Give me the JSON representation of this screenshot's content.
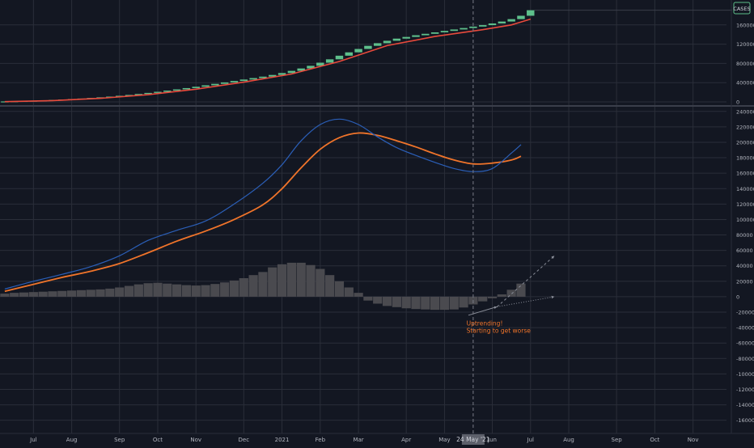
{
  "symbol": "CASES",
  "colors": {
    "background": "#131722",
    "grid": "#2a2e39",
    "axis_text": "#b2b5be",
    "candle_up": "#5ebf8b",
    "price_ma": "#e84a3c",
    "macd_line": "#2b5fb8",
    "signal_line": "#f0742a",
    "histogram": "#4a4a4f",
    "annotation": "#f0742a",
    "crosshair": "#787b86"
  },
  "chart_data": [
    {
      "type": "candlestick",
      "name": "price-pane",
      "title": "",
      "y_ticks": [
        0,
        400000,
        800000,
        1200000,
        1600000
      ],
      "ylim": [
        -50000,
        2050000
      ],
      "last_value_label": "CASES",
      "candles": [
        [
          0,
          5000,
          10000
        ],
        [
          1,
          10000,
          15000
        ],
        [
          2,
          15000,
          20000
        ],
        [
          3,
          20000,
          26000
        ],
        [
          4,
          26000,
          33000
        ],
        [
          5,
          33000,
          41000
        ],
        [
          6,
          41000,
          50000
        ],
        [
          7,
          50000,
          60000
        ],
        [
          8,
          60000,
          70000
        ],
        [
          9,
          70000,
          82000
        ],
        [
          10,
          82000,
          95000
        ],
        [
          11,
          95000,
          110000
        ],
        [
          12,
          110000,
          127000
        ],
        [
          13,
          127000,
          145000
        ],
        [
          14,
          145000,
          165000
        ],
        [
          15,
          165000,
          187000
        ],
        [
          16,
          187000,
          210000
        ],
        [
          17,
          210000,
          235000
        ],
        [
          18,
          235000,
          260000
        ],
        [
          19,
          260000,
          287000
        ],
        [
          20,
          287000,
          315000
        ],
        [
          21,
          315000,
          345000
        ],
        [
          22,
          345000,
          375000
        ],
        [
          23,
          375000,
          405000
        ],
        [
          24,
          405000,
          435000
        ],
        [
          25,
          435000,
          465000
        ],
        [
          26,
          465000,
          495000
        ],
        [
          27,
          495000,
          525000
        ],
        [
          28,
          525000,
          560000
        ],
        [
          29,
          560000,
          600000
        ],
        [
          30,
          600000,
          645000
        ],
        [
          31,
          645000,
          695000
        ],
        [
          32,
          695000,
          750000
        ],
        [
          33,
          750000,
          815000
        ],
        [
          34,
          815000,
          885000
        ],
        [
          35,
          885000,
          960000
        ],
        [
          36,
          960000,
          1030000
        ],
        [
          37,
          1030000,
          1100000
        ],
        [
          38,
          1100000,
          1165000
        ],
        [
          39,
          1165000,
          1220000
        ],
        [
          40,
          1220000,
          1270000
        ],
        [
          41,
          1270000,
          1315000
        ],
        [
          42,
          1315000,
          1350000
        ],
        [
          43,
          1350000,
          1385000
        ],
        [
          44,
          1385000,
          1415000
        ],
        [
          45,
          1415000,
          1445000
        ],
        [
          46,
          1445000,
          1475000
        ],
        [
          47,
          1475000,
          1505000
        ],
        [
          48,
          1505000,
          1535000
        ],
        [
          49,
          1535000,
          1565000
        ],
        [
          50,
          1565000,
          1595000
        ],
        [
          51,
          1595000,
          1630000
        ],
        [
          52,
          1630000,
          1670000
        ],
        [
          53,
          1670000,
          1720000
        ],
        [
          54,
          1720000,
          1790000
        ],
        [
          55,
          1790000,
          1905000
        ]
      ],
      "moving_average": [
        [
          0,
          5000
        ],
        [
          5,
          28000
        ],
        [
          10,
          75000
        ],
        [
          15,
          150000
        ],
        [
          20,
          265000
        ],
        [
          25,
          410000
        ],
        [
          30,
          580000
        ],
        [
          35,
          840000
        ],
        [
          40,
          1170000
        ],
        [
          45,
          1360000
        ],
        [
          50,
          1500000
        ],
        [
          53,
          1600000
        ],
        [
          55,
          1720000
        ]
      ]
    },
    {
      "type": "line",
      "name": "oscillator-pane",
      "title": "",
      "y_ticks": [
        240000,
        220000,
        200000,
        180000,
        160000,
        140000,
        120000,
        100000,
        80000,
        60000,
        40000,
        20000,
        0,
        -20000,
        -40000,
        -60000,
        -80000,
        -100000,
        -120000,
        -140000,
        -160000
      ],
      "ylim": [
        -175000,
        245000
      ],
      "series": [
        {
          "key": "fast",
          "values": [
            [
              0,
              10000
            ],
            [
              3,
              20000
            ],
            [
              6,
              29000
            ],
            [
              9,
              39000
            ],
            [
              12,
              53000
            ],
            [
              15,
              73000
            ],
            [
              18,
              86000
            ],
            [
              21,
              98000
            ],
            [
              24,
              120000
            ],
            [
              27,
              147000
            ],
            [
              29,
              171000
            ],
            [
              31,
              202000
            ],
            [
              33,
              223000
            ],
            [
              35,
              230000
            ],
            [
              37,
              223000
            ],
            [
              39,
              207000
            ],
            [
              41,
              193000
            ],
            [
              43,
              183000
            ],
            [
              45,
              174000
            ],
            [
              47,
              166000
            ],
            [
              49,
              162000
            ],
            [
              51,
              166000
            ],
            [
              53,
              186000
            ],
            [
              54,
              197000
            ]
          ]
        },
        {
          "key": "slow",
          "values": [
            [
              0,
              7000
            ],
            [
              3,
              16000
            ],
            [
              6,
              25000
            ],
            [
              9,
              33000
            ],
            [
              12,
              43000
            ],
            [
              15,
              57000
            ],
            [
              18,
              72000
            ],
            [
              21,
              85000
            ],
            [
              24,
              100000
            ],
            [
              27,
              119000
            ],
            [
              29,
              140000
            ],
            [
              31,
              167000
            ],
            [
              33,
              191000
            ],
            [
              35,
              206000
            ],
            [
              37,
              212000
            ],
            [
              39,
              209000
            ],
            [
              41,
              202000
            ],
            [
              43,
              194000
            ],
            [
              45,
              185000
            ],
            [
              47,
              177000
            ],
            [
              49,
              172000
            ],
            [
              51,
              173000
            ],
            [
              53,
              177000
            ],
            [
              54,
              182000
            ]
          ]
        }
      ],
      "histogram": [
        [
          0,
          4000
        ],
        [
          1,
          5000
        ],
        [
          2,
          5500
        ],
        [
          3,
          6000
        ],
        [
          4,
          6500
        ],
        [
          5,
          7000
        ],
        [
          6,
          7500
        ],
        [
          7,
          8000
        ],
        [
          8,
          8500
        ],
        [
          9,
          9000
        ],
        [
          10,
          9500
        ],
        [
          11,
          10500
        ],
        [
          12,
          12000
        ],
        [
          13,
          14000
        ],
        [
          14,
          16000
        ],
        [
          15,
          17500
        ],
        [
          16,
          18000
        ],
        [
          17,
          17000
        ],
        [
          18,
          16000
        ],
        [
          19,
          15000
        ],
        [
          20,
          14500
        ],
        [
          21,
          15000
        ],
        [
          22,
          16500
        ],
        [
          23,
          18500
        ],
        [
          24,
          21000
        ],
        [
          25,
          24000
        ],
        [
          26,
          28000
        ],
        [
          27,
          32000
        ],
        [
          28,
          38000
        ],
        [
          29,
          42000
        ],
        [
          30,
          44000
        ],
        [
          31,
          44000
        ],
        [
          32,
          41000
        ],
        [
          33,
          36000
        ],
        [
          34,
          28000
        ],
        [
          35,
          20000
        ],
        [
          36,
          12000
        ],
        [
          37,
          5000
        ],
        [
          38,
          -5000
        ],
        [
          39,
          -9000
        ],
        [
          40,
          -12000
        ],
        [
          41,
          -13500
        ],
        [
          42,
          -15000
        ],
        [
          43,
          -16000
        ],
        [
          44,
          -16500
        ],
        [
          45,
          -17000
        ],
        [
          46,
          -17000
        ],
        [
          47,
          -16500
        ],
        [
          48,
          -14000
        ],
        [
          49,
          -10000
        ],
        [
          50,
          -6000
        ],
        [
          51,
          -2000
        ],
        [
          52,
          3000
        ],
        [
          53,
          9000
        ],
        [
          54,
          17000
        ]
      ],
      "annotation": {
        "lines": [
          "Uptrending!",
          "Starting to get worse"
        ],
        "x": 48.3,
        "y": -28000
      },
      "trend_arrows": [
        {
          "from": [
            48.5,
            -24000
          ],
          "to": [
            51.5,
            -13000
          ],
          "style": "solid"
        },
        {
          "from": [
            51.5,
            -13000
          ],
          "to": [
            57.5,
            53000
          ],
          "style": "dashed"
        },
        {
          "from": [
            51.5,
            -13000
          ],
          "to": [
            57.5,
            0
          ],
          "style": "dotted"
        }
      ]
    }
  ],
  "x_axis": {
    "labels": [
      {
        "text": "Jul",
        "pos": 3
      },
      {
        "text": "Aug",
        "pos": 7
      },
      {
        "text": "Sep",
        "pos": 12
      },
      {
        "text": "Oct",
        "pos": 16
      },
      {
        "text": "Nov",
        "pos": 20
      },
      {
        "text": "Dec",
        "pos": 25
      },
      {
        "text": "2021",
        "pos": 29
      },
      {
        "text": "Feb",
        "pos": 33
      },
      {
        "text": "Mar",
        "pos": 37
      },
      {
        "text": "Apr",
        "pos": 42
      },
      {
        "text": "May",
        "pos": 46
      },
      {
        "text": "Jun",
        "pos": 51
      },
      {
        "text": "Jul",
        "pos": 55
      },
      {
        "text": "Aug",
        "pos": 59
      },
      {
        "text": "Sep",
        "pos": 64
      },
      {
        "text": "Oct",
        "pos": 68
      },
      {
        "text": "Nov",
        "pos": 72
      }
    ],
    "crosshair": {
      "pos": 49,
      "label": "24 May '21"
    },
    "range": [
      -0.5,
      75.5
    ]
  }
}
